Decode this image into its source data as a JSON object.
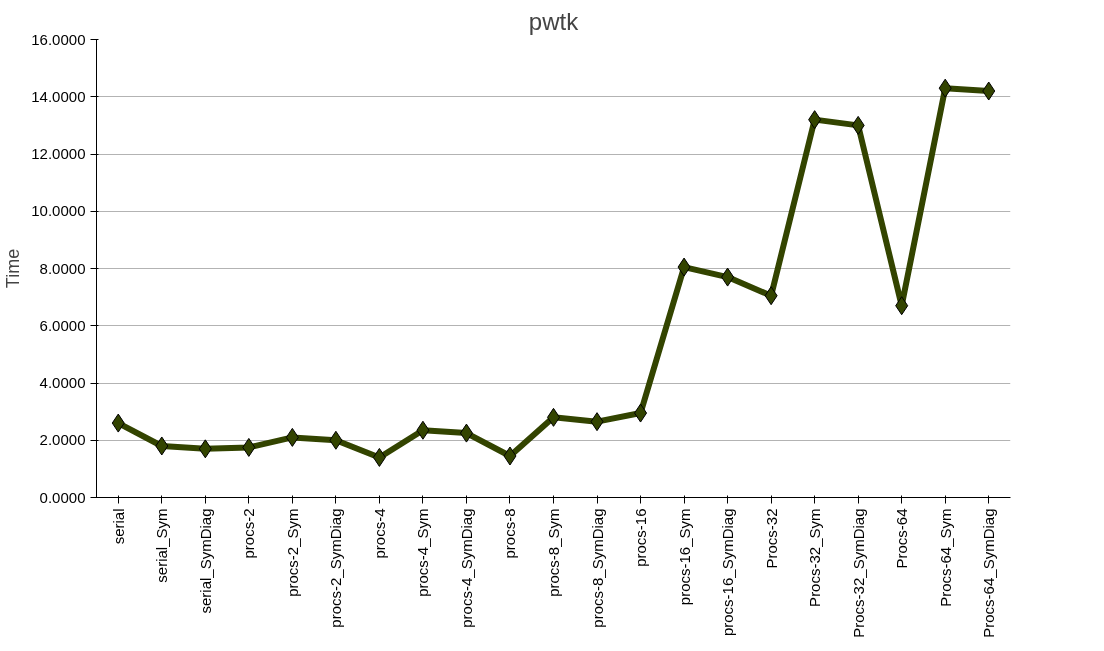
{
  "chart_data": {
    "type": "line",
    "title": "pwtk",
    "ylabel": "Time",
    "categories": [
      "serial",
      "serial_Sym",
      "serial_SymDiag",
      "procs-2",
      "procs-2_Sym",
      "procs-2_SymDiag",
      "procs-4",
      "procs-4_Sym",
      "procs-4_SymDiag",
      "procs-8",
      "procs-8_Sym",
      "procs-8_SymDiag",
      "procs-16",
      "procs-16_Sym",
      "procs-16_SymDiag",
      "Procs-32",
      "Procs-32_Sym",
      "Procs-32_SymDiag",
      "Procs-64",
      "Procs-64_Sym",
      "Procs-64_SymDiag"
    ],
    "series": [
      {
        "color": "#334400",
        "values": [
          2.6,
          1.8,
          1.7,
          1.75,
          2.1,
          2.0,
          1.4,
          2.35,
          2.25,
          1.45,
          2.8,
          2.65,
          2.95,
          8.05,
          7.7,
          7.05,
          13.2,
          13.0,
          6.7,
          14.3,
          14.2
        ]
      }
    ],
    "ylim": [
      0,
      16
    ],
    "yticks": [
      {
        "value": 0,
        "label": "0.0000"
      },
      {
        "value": 2,
        "label": "2.0000"
      },
      {
        "value": 4,
        "label": "4.0000"
      },
      {
        "value": 6,
        "label": "6.0000"
      },
      {
        "value": 8,
        "label": "8.0000"
      },
      {
        "value": 10,
        "label": "10.0000"
      },
      {
        "value": 12,
        "label": "12.0000"
      },
      {
        "value": 14,
        "label": "14.0000"
      },
      {
        "value": 16,
        "label": "16.0000"
      }
    ],
    "grid": "y",
    "marker": "diamond",
    "line_style": "solid"
  }
}
